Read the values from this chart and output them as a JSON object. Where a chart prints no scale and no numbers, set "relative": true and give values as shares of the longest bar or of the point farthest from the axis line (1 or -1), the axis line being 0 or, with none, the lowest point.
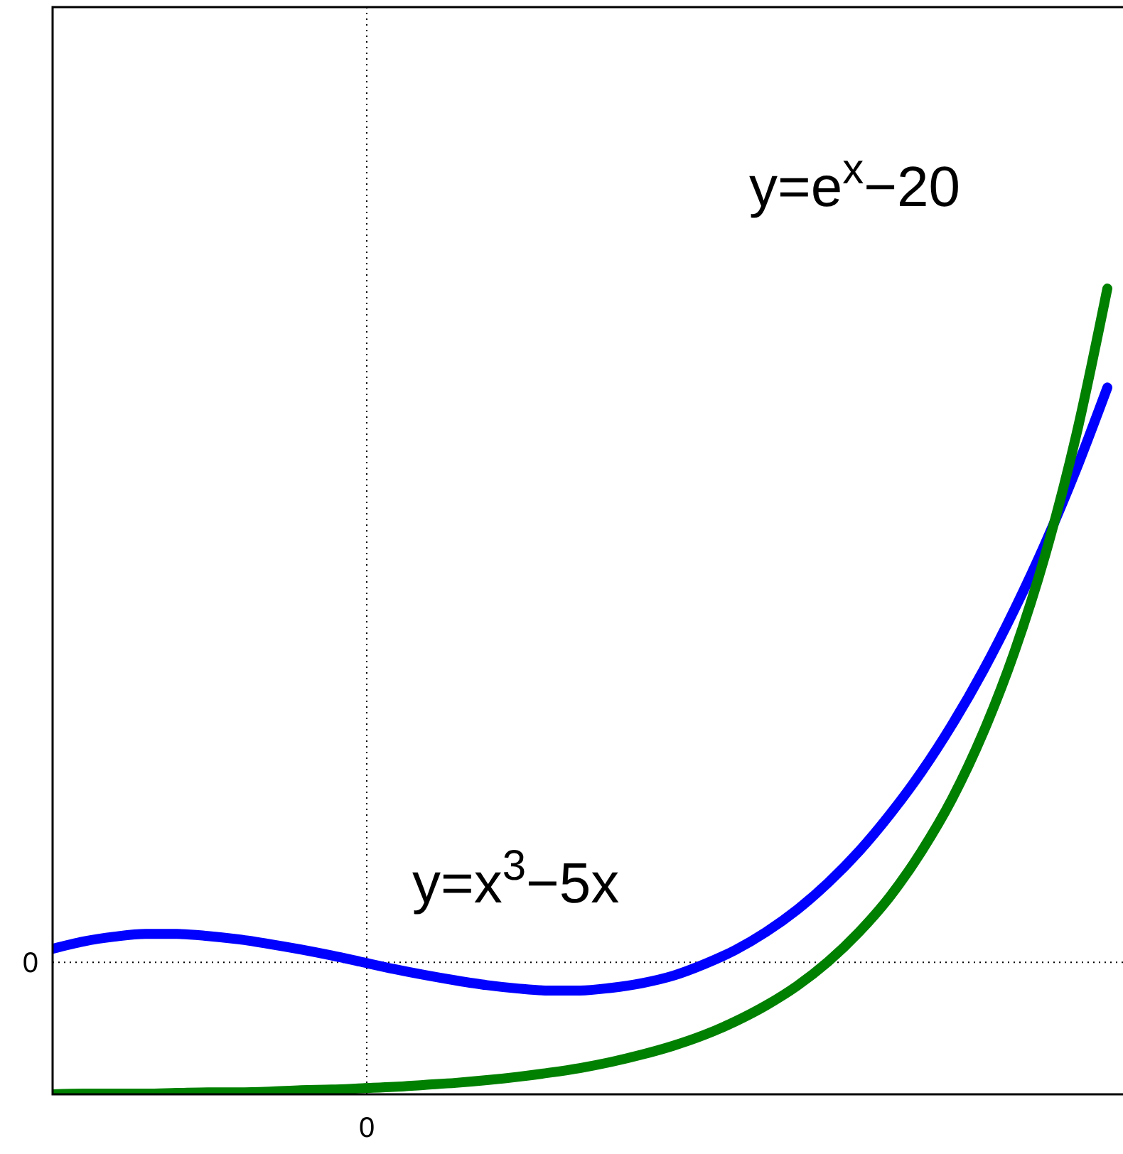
{
  "chart_data": {
    "type": "line",
    "relative": true,
    "line_style": "solid",
    "annotations": [
      "0"
    ],
    "categories": [
      null,
      null,
      null,
      null,
      null,
      null,
      null,
      null,
      null,
      null,
      null,
      null,
      null,
      null,
      null,
      null,
      null,
      null,
      null,
      null,
      null,
      null,
      null,
      null,
      null,
      null,
      null,
      null,
      null,
      null,
      null,
      null,
      null,
      null,
      null
    ],
    "series": [
      {
        "name": "y=x$^{3}$−5x",
        "color": "#0000ff",
        "values": [
          0.02,
          0.031,
          0.038,
          0.042,
          0.042,
          0.039,
          0.034,
          0.027,
          0.019,
          0.01,
          0,
          -0.01,
          -0.019,
          -0.027,
          -0.034,
          -0.039,
          -0.042,
          -0.042,
          -0.038,
          -0.031,
          -0.02,
          -0.003,
          0.018,
          0.045,
          0.078,
          0.118,
          0.165,
          0.22,
          0.282,
          0.353,
          0.433,
          0.523,
          0.622,
          0.732,
          0.853
        ]
      },
      {
        "name": "y=e$^{x}$−20",
        "color": "#008000",
        "values": [
          -0.196,
          -0.195,
          -0.195,
          -0.195,
          -0.194,
          -0.193,
          -0.193,
          -0.192,
          -0.19,
          -0.189,
          -0.187,
          -0.185,
          -0.182,
          -0.179,
          -0.175,
          -0.17,
          -0.164,
          -0.157,
          -0.148,
          -0.137,
          -0.124,
          -0.108,
          -0.088,
          -0.064,
          -0.035,
          0.001,
          0.045,
          0.098,
          0.164,
          0.243,
          0.341,
          0.46,
          0.605,
          0.783,
          1
        ]
      }
    ],
    "ref_lines": [
      {
        "axis": "y",
        "value": 0,
        "label": "0",
        "line_style": "dotted"
      }
    ]
  }
}
